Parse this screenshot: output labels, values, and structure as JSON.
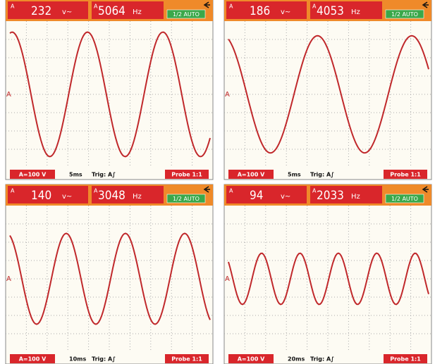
{
  "panels": [
    {
      "channel": "A",
      "voltage": "232",
      "voltage_unit": "v~",
      "frequency": "5064",
      "frequency_unit": "Hz",
      "mode": "1/2 AUTO",
      "range": "A=100 V",
      "timebase": "5ms",
      "trigger": "Trig: A∫",
      "probe": "Probe 1:1"
    },
    {
      "channel": "A",
      "voltage": "186",
      "voltage_unit": "v~",
      "frequency": "4053",
      "frequency_unit": "Hz",
      "mode": "1/2 AUTO",
      "range": "A=100 V",
      "timebase": "5ms",
      "trigger": "Trig: A∫",
      "probe": "Probe 1:1"
    },
    {
      "channel": "A",
      "voltage": "140",
      "voltage_unit": "v~",
      "frequency": "3048",
      "frequency_unit": "Hz",
      "mode": "1/2 AUTO",
      "range": "A=100 V",
      "timebase": "10ms",
      "trigger": "Trig: A∫",
      "probe": "Probe 1:1"
    },
    {
      "channel": "A",
      "voltage": "94",
      "voltage_unit": "v~",
      "frequency": "2033",
      "frequency_unit": "Hz",
      "mode": "1/2 AUTO",
      "range": "A=100 V",
      "timebase": "20ms",
      "trigger": "Trig: A∫",
      "probe": "Probe 1:1"
    }
  ]
}
